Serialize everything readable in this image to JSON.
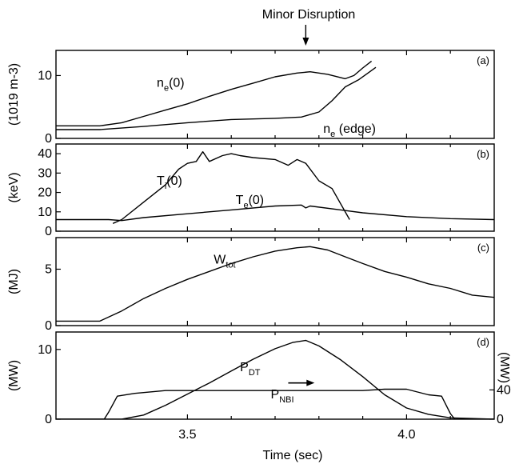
{
  "chart_data": {
    "type": "line",
    "xlabel": "Time (sec)",
    "xlim": [
      3.2,
      4.2
    ],
    "xticks": [
      "3.5",
      "4.0"
    ],
    "xtick_values": [
      3.5,
      4.0
    ],
    "annotation": {
      "text": "Minor Disruption",
      "x": 3.77
    },
    "panels": [
      {
        "tag": "(a)",
        "ylabel": "(1019 m-3)",
        "ylim": [
          0,
          14
        ],
        "yticks": [
          0,
          10
        ],
        "series": [
          {
            "name": "ne(0)",
            "label_main": "n",
            "label_sub": "e",
            "label_tail": "(0)",
            "label_at": [
              3.43,
              8.2
            ],
            "points": [
              [
                3.2,
                2.0
              ],
              [
                3.3,
                2.0
              ],
              [
                3.35,
                2.5
              ],
              [
                3.4,
                3.5
              ],
              [
                3.45,
                4.5
              ],
              [
                3.5,
                5.5
              ],
              [
                3.55,
                6.7
              ],
              [
                3.6,
                7.8
              ],
              [
                3.65,
                8.8
              ],
              [
                3.7,
                9.8
              ],
              [
                3.75,
                10.4
              ],
              [
                3.78,
                10.6
              ],
              [
                3.82,
                10.2
              ],
              [
                3.86,
                9.5
              ],
              [
                3.88,
                10.0
              ],
              [
                3.9,
                11.2
              ],
              [
                3.92,
                12.3
              ]
            ]
          },
          {
            "name": "ne (edge)",
            "label_main": "n",
            "label_sub": "e",
            "label_tail": " (edge)",
            "label_at": [
              3.81,
              0.9
            ],
            "points": [
              [
                3.2,
                1.4
              ],
              [
                3.3,
                1.4
              ],
              [
                3.4,
                1.9
              ],
              [
                3.5,
                2.5
              ],
              [
                3.6,
                3.0
              ],
              [
                3.7,
                3.2
              ],
              [
                3.76,
                3.4
              ],
              [
                3.8,
                4.2
              ],
              [
                3.83,
                6.0
              ],
              [
                3.86,
                8.2
              ],
              [
                3.89,
                9.3
              ],
              [
                3.91,
                10.3
              ],
              [
                3.93,
                11.3
              ]
            ]
          }
        ]
      },
      {
        "tag": "(b)",
        "ylabel": "(keV)",
        "ylim": [
          0,
          45
        ],
        "yticks": [
          0,
          10,
          20,
          30,
          40
        ],
        "series": [
          {
            "name": "Ti(0)",
            "label_main": "T",
            "label_sub": "i",
            "label_tail": "(0)",
            "label_at": [
              3.43,
              24
            ],
            "points": [
              [
                3.33,
                4
              ],
              [
                3.35,
                6
              ],
              [
                3.4,
                15
              ],
              [
                3.45,
                24
              ],
              [
                3.48,
                32
              ],
              [
                3.5,
                35
              ],
              [
                3.52,
                36
              ],
              [
                3.535,
                41
              ],
              [
                3.55,
                36
              ],
              [
                3.58,
                39
              ],
              [
                3.6,
                40
              ],
              [
                3.62,
                39
              ],
              [
                3.65,
                38
              ],
              [
                3.7,
                37
              ],
              [
                3.73,
                34
              ],
              [
                3.75,
                37
              ],
              [
                3.77,
                35
              ],
              [
                3.8,
                26
              ],
              [
                3.83,
                22
              ],
              [
                3.87,
                6
              ]
            ]
          },
          {
            "name": "Te(0)",
            "label_main": "T",
            "label_sub": "e",
            "label_tail": "(0)",
            "label_at": [
              3.61,
              14
            ],
            "points": [
              [
                3.2,
                6
              ],
              [
                3.32,
                6
              ],
              [
                3.35,
                5.5
              ],
              [
                3.4,
                7
              ],
              [
                3.5,
                9
              ],
              [
                3.6,
                11
              ],
              [
                3.7,
                13
              ],
              [
                3.76,
                13.5
              ],
              [
                3.77,
                12
              ],
              [
                3.78,
                13
              ],
              [
                3.85,
                11
              ],
              [
                3.9,
                9.5
              ],
              [
                4.0,
                7.5
              ],
              [
                4.1,
                6.5
              ],
              [
                4.2,
                6
              ]
            ]
          }
        ]
      },
      {
        "tag": "(c)",
        "ylabel": "(MJ)",
        "ylim": [
          0,
          7.8
        ],
        "yticks": [
          0,
          5
        ],
        "series": [
          {
            "name": "Wtot",
            "label_main": "W",
            "label_sub": "tot",
            "label_tail": "",
            "label_at": [
              3.56,
              5.5
            ],
            "points": [
              [
                3.2,
                0.4
              ],
              [
                3.3,
                0.4
              ],
              [
                3.35,
                1.3
              ],
              [
                3.4,
                2.4
              ],
              [
                3.45,
                3.3
              ],
              [
                3.5,
                4.1
              ],
              [
                3.55,
                4.8
              ],
              [
                3.6,
                5.5
              ],
              [
                3.65,
                6.1
              ],
              [
                3.7,
                6.6
              ],
              [
                3.75,
                6.9
              ],
              [
                3.78,
                7.0
              ],
              [
                3.82,
                6.7
              ],
              [
                3.86,
                6.1
              ],
              [
                3.9,
                5.5
              ],
              [
                3.95,
                4.8
              ],
              [
                4.0,
                4.3
              ],
              [
                4.05,
                3.7
              ],
              [
                4.1,
                3.3
              ],
              [
                4.15,
                2.7
              ],
              [
                4.2,
                2.5
              ]
            ]
          }
        ]
      },
      {
        "tag": "(d)",
        "ylabel": "(MW)",
        "ylabel_right": "(MW)",
        "ylim": [
          0,
          12.5
        ],
        "yticks": [
          0,
          10
        ],
        "yticks_right": [
          "0",
          "40"
        ],
        "yticks_right_values": [
          0,
          4.2
        ],
        "series": [
          {
            "name": "PDT",
            "label_main": "P",
            "label_sub": "DT",
            "label_tail": "",
            "label_at": [
              3.62,
              6.9
            ],
            "points": [
              [
                3.2,
                0
              ],
              [
                3.35,
                0
              ],
              [
                3.4,
                0.6
              ],
              [
                3.45,
                2.0
              ],
              [
                3.5,
                3.6
              ],
              [
                3.55,
                5.2
              ],
              [
                3.6,
                6.9
              ],
              [
                3.65,
                8.6
              ],
              [
                3.7,
                10.1
              ],
              [
                3.74,
                11.0
              ],
              [
                3.77,
                11.3
              ],
              [
                3.8,
                10.5
              ],
              [
                3.85,
                8.5
              ],
              [
                3.9,
                6.1
              ],
              [
                3.95,
                3.5
              ],
              [
                4.0,
                1.6
              ],
              [
                4.05,
                0.7
              ],
              [
                4.1,
                0.2
              ],
              [
                4.2,
                0
              ]
            ]
          },
          {
            "name": "PNBI",
            "label_main": "P",
            "label_sub": "NBI",
            "label_tail": "",
            "label_at": [
              3.69,
              3.0
            ],
            "arrow_from": 3.73,
            "arrow_to": 3.79,
            "arrow_y": 5.2,
            "points": [
              [
                3.2,
                0
              ],
              [
                3.31,
                0
              ],
              [
                3.32,
                1.0
              ],
              [
                3.34,
                3.3
              ],
              [
                3.38,
                3.7
              ],
              [
                3.45,
                4.1
              ],
              [
                3.9,
                4.1
              ],
              [
                3.95,
                4.3
              ],
              [
                4.0,
                4.3
              ],
              [
                4.05,
                3.5
              ],
              [
                4.08,
                3.3
              ],
              [
                4.1,
                0.8
              ],
              [
                4.11,
                0
              ],
              [
                4.2,
                0
              ]
            ]
          }
        ]
      }
    ]
  }
}
